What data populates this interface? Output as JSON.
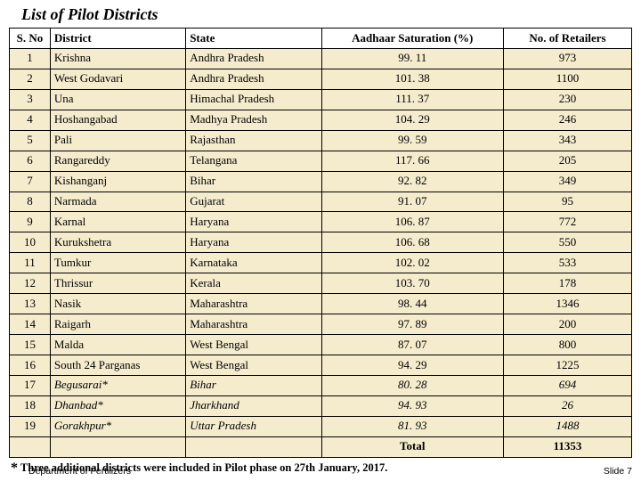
{
  "title": "List of Pilot Districts",
  "columns": [
    "S. No",
    "District",
    "State",
    "Aadhaar Saturation (%)",
    "No. of Retailers"
  ],
  "rows": [
    {
      "n": "1",
      "d": "Krishna",
      "s": "Andhra Pradesh",
      "a": "99. 11",
      "r": "973",
      "it": false
    },
    {
      "n": "2",
      "d": "West Godavari",
      "s": "Andhra Pradesh",
      "a": "101. 38",
      "r": "1100",
      "it": false
    },
    {
      "n": "3",
      "d": "Una",
      "s": "Himachal Pradesh",
      "a": "111. 37",
      "r": "230",
      "it": false
    },
    {
      "n": "4",
      "d": "Hoshangabad",
      "s": "Madhya Pradesh",
      "a": "104. 29",
      "r": "246",
      "it": false
    },
    {
      "n": "5",
      "d": "Pali",
      "s": "Rajasthan",
      "a": "99. 59",
      "r": "343",
      "it": false
    },
    {
      "n": "6",
      "d": "Rangareddy",
      "s": "Telangana",
      "a": "117. 66",
      "r": "205",
      "it": false
    },
    {
      "n": "7",
      "d": "Kishanganj",
      "s": "Bihar",
      "a": "92. 82",
      "r": "349",
      "it": false
    },
    {
      "n": "8",
      "d": "Narmada",
      "s": "Gujarat",
      "a": "91. 07",
      "r": "95",
      "it": false
    },
    {
      "n": "9",
      "d": "Karnal",
      "s": "Haryana",
      "a": "106. 87",
      "r": "772",
      "it": false
    },
    {
      "n": "10",
      "d": "Kurukshetra",
      "s": "Haryana",
      "a": "106. 68",
      "r": "550",
      "it": false
    },
    {
      "n": "11",
      "d": "Tumkur",
      "s": "Karnataka",
      "a": "102. 02",
      "r": "533",
      "it": false
    },
    {
      "n": "12",
      "d": "Thrissur",
      "s": "Kerala",
      "a": "103. 70",
      "r": "178",
      "it": false
    },
    {
      "n": "13",
      "d": "Nasik",
      "s": "Maharashtra",
      "a": "98. 44",
      "r": "1346",
      "it": false
    },
    {
      "n": "14",
      "d": "Raigarh",
      "s": "Maharashtra",
      "a": "97. 89",
      "r": "200",
      "it": false
    },
    {
      "n": "15",
      "d": "Malda",
      "s": "West Bengal",
      "a": "87. 07",
      "r": "800",
      "it": false
    },
    {
      "n": "16",
      "d": "South 24 Parganas",
      "s": "West Bengal",
      "a": "94. 29",
      "r": "1225",
      "it": false
    },
    {
      "n": "17",
      "d": "Begusarai*",
      "s": "Bihar",
      "a": "80. 28",
      "r": "694",
      "it": true
    },
    {
      "n": "18",
      "d": "Dhanbad*",
      "s": "Jharkhand",
      "a": "94. 93",
      "r": "26",
      "it": true
    },
    {
      "n": "19",
      "d": "Gorakhpur*",
      "s": "Uttar Pradesh",
      "a": "81. 93",
      "r": "1488",
      "it": true
    }
  ],
  "total": {
    "label": "Total",
    "value": "11353"
  },
  "footnote": "Three additional districts were included in Pilot phase on 27th January, 2017.",
  "footer": {
    "dept": "Department of Fertilizers",
    "slide": "Slide 7"
  }
}
